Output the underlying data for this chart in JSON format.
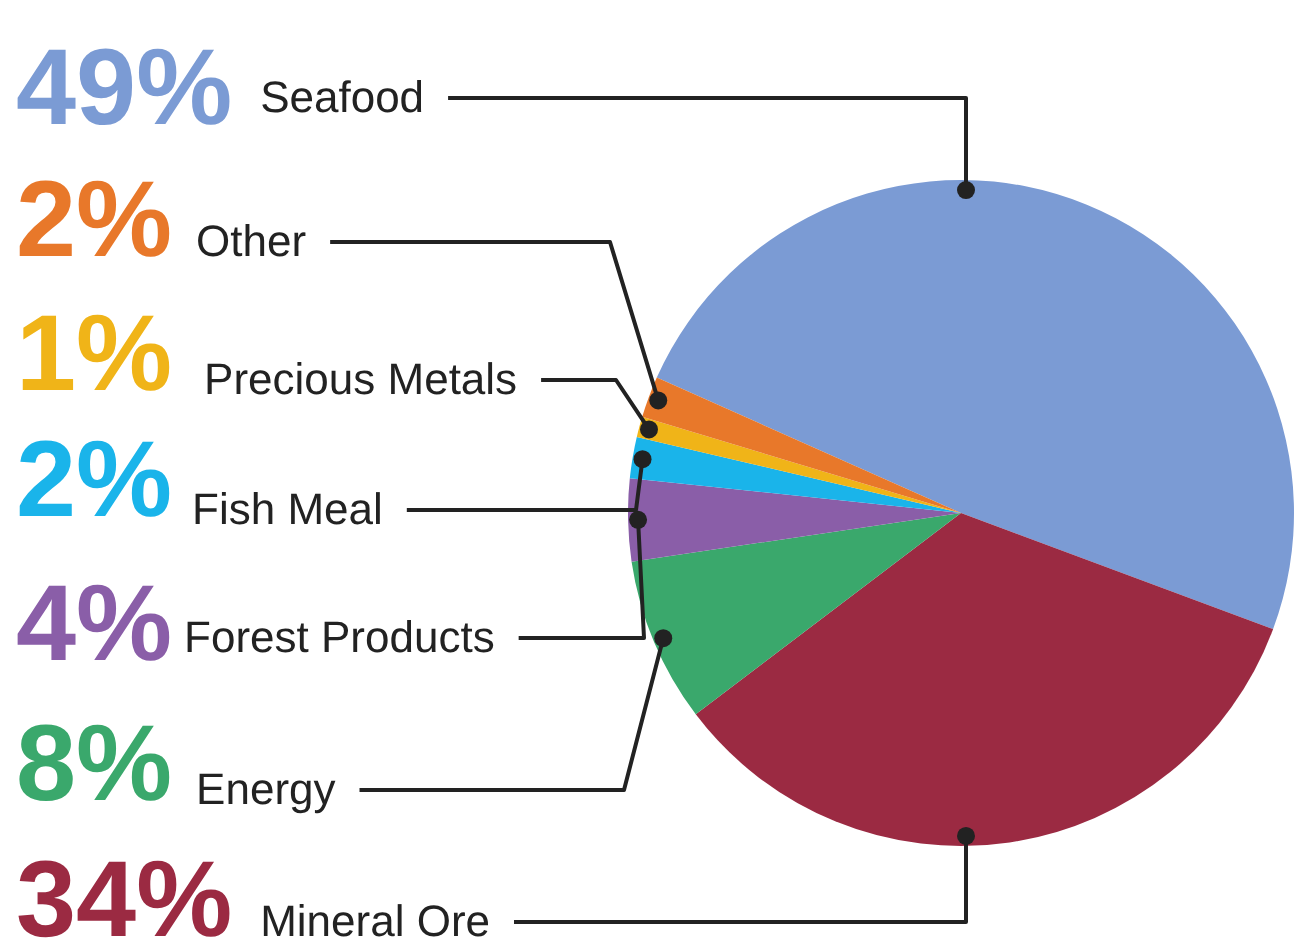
{
  "chart_data": {
    "type": "pie",
    "categories": [
      "Seafood",
      "Mineral Ore",
      "Energy",
      "Forest Products",
      "Fish Meal",
      "Precious Metals",
      "Other"
    ],
    "values": [
      49,
      34,
      8,
      4,
      2,
      1,
      2
    ],
    "colors": [
      "#7b9bd4",
      "#9b2a42",
      "#3aa86c",
      "#8a5ea8",
      "#1ab4ea",
      "#f0b418",
      "#e8782a"
    ],
    "value_labels": [
      "49%",
      "34%",
      "8%",
      "4%",
      "2%",
      "1%",
      "2%"
    ]
  }
}
